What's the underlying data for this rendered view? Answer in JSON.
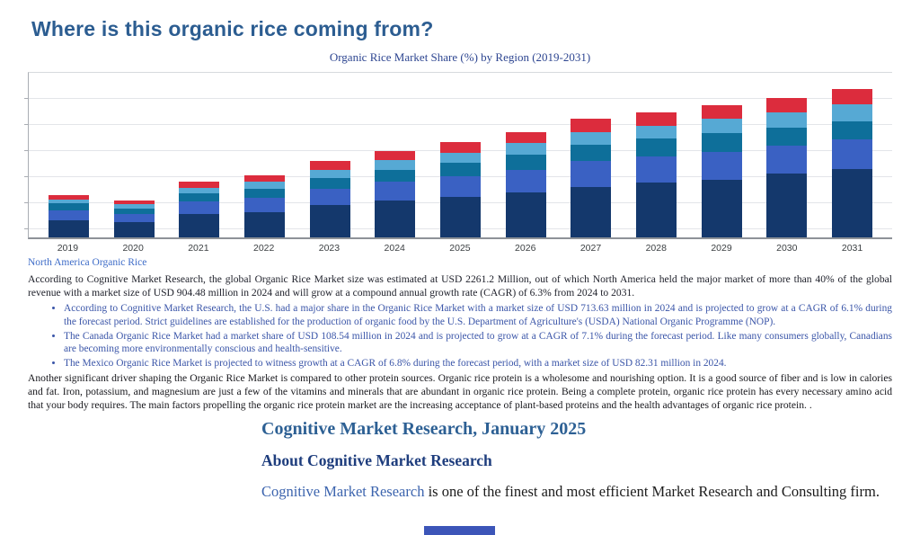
{
  "title": "Where is this organic rice coming from?",
  "chart_data": {
    "type": "bar",
    "stacked": true,
    "title": "Organic Rice Market Share (%) by Region (2019-2031)",
    "categories": [
      "2019",
      "2020",
      "2021",
      "2022",
      "2023",
      "2024",
      "2025",
      "2026",
      "2027",
      "2028",
      "2029",
      "2030",
      "2031"
    ],
    "series": [
      {
        "name": "stack-1-dark-navy",
        "color": "#14386c",
        "values": [
          18,
          16,
          25,
          27,
          34,
          39,
          43,
          48,
          54,
          58,
          61,
          68,
          73
        ]
      },
      {
        "name": "stack-2-royal-blue",
        "color": "#3a61c3",
        "values": [
          11,
          9,
          13,
          15,
          18,
          20,
          22,
          24,
          27,
          28,
          30,
          30,
          31
        ]
      },
      {
        "name": "stack-3-teal-blue",
        "color": "#0e6f9a",
        "values": [
          7,
          6,
          9,
          10,
          11,
          13,
          14,
          16,
          18,
          19,
          20,
          19,
          19
        ]
      },
      {
        "name": "stack-4-sky-blue",
        "color": "#56a9d4",
        "values": [
          4,
          4,
          6,
          7,
          9,
          10,
          11,
          12,
          13,
          14,
          15,
          16,
          19
        ]
      },
      {
        "name": "stack-5-red",
        "color": "#dc2c3d",
        "values": [
          5,
          4,
          6,
          7,
          9,
          10,
          11,
          12,
          14,
          14,
          15,
          15,
          16
        ]
      }
    ],
    "xlabel": "",
    "ylabel": "",
    "ylim": [
      0,
      175
    ],
    "grid": true,
    "legend": false
  },
  "chart_footer_link": "North America Organic Rice",
  "paragraphs": {
    "intro": "According to Cognitive Market Research, the global Organic Rice Market size was estimated at USD 2261.2 Million, out of which North America held the major market of more than 40% of the global revenue with a market size of USD 904.48 million in 2024 and will grow at a compound annual growth rate (CAGR) of 6.3% from 2024 to 2031.",
    "driver": "Another significant driver shaping the Organic Rice Market is compared to other protein sources. Organic rice protein is a wholesome and nourishing option. It is a good source of fiber and is low in calories and fat. Iron, potassium, and magnesium are just a few of the vitamins and minerals that are abundant in organic rice protein. Being a complete protein, organic rice protein has every necessary amino acid that your body requires. The main factors propelling the organic rice protein market are the increasing acceptance of plant-based proteins and the health advantages of organic rice protein. ."
  },
  "bullets": [
    "According to Cognitive Market Research, the U.S. had a major share in the Organic Rice Market with a market size of USD 713.63 million in 2024 and is projected to grow at a CAGR of 6.1% during the forecast period. Strict guidelines are established for the production of organic food by the U.S. Department of Agriculture's (USDA) National Organic Programme (NOP).",
    "The Canada Organic Rice Market had a market share of USD 108.54 million in 2024 and is projected to grow at a CAGR of 7.1% during the forecast period. Like many consumers globally, Canadians are becoming more environmentally conscious and health-sensitive.",
    "The Mexico Organic Rice Market is projected to witness growth at a CAGR of 6.8% during the forecast period, with a market size of USD 82.31 million in 2024."
  ],
  "footer": {
    "heading": "Cognitive Market Research, January 2025",
    "subheading": "About Cognitive Market Research",
    "closing_link": "Cognitive Market Research",
    "closing_rest": " is one of the finest and most efficient Market Research and Consulting firm."
  },
  "colors": {
    "title_blue": "#2c5d91",
    "chart_title_blue": "#2e4691",
    "bullet_blue": "#3a55a8",
    "link_blue": "#3e6cc8",
    "heading_blue": "#2d6094",
    "subheading_navy": "#1e3d7d",
    "accent_bar_blue": "#3c55b8"
  }
}
